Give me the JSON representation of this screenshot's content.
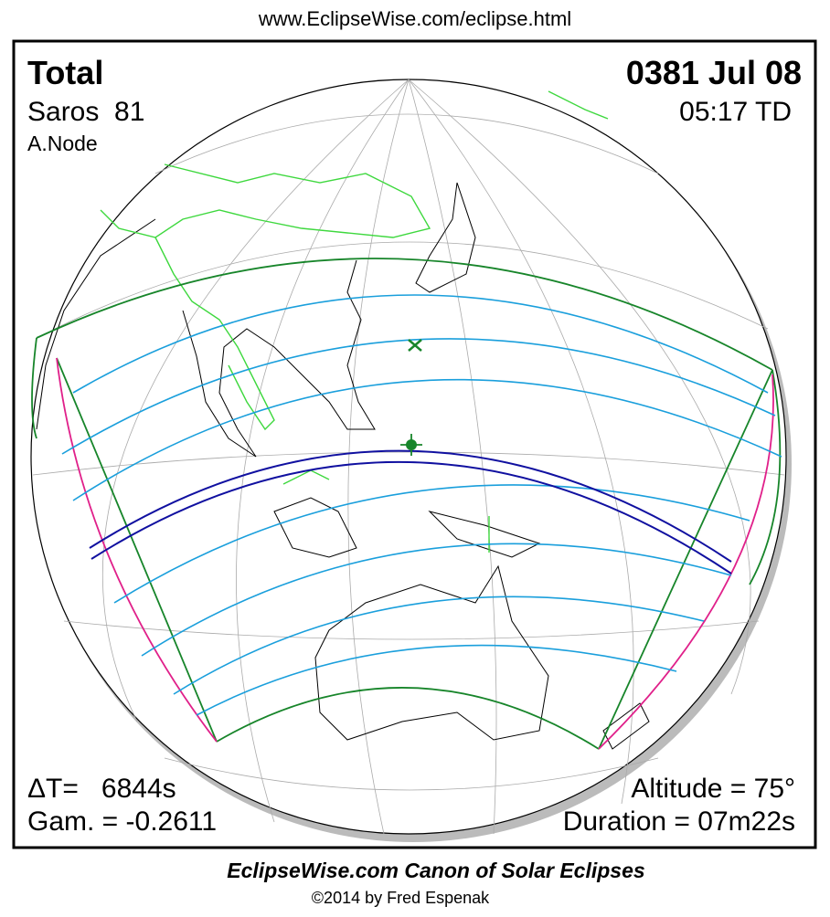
{
  "header": {
    "url": "www.EclipseWise.com/eclipse.html"
  },
  "panel": {
    "eclipse_type": "Total",
    "date": "0381 Jul 08",
    "saros": "Saros  81",
    "time": "05:17 TD",
    "node": "A.Node",
    "delta_t": "ΔT=   6844s",
    "gamma": "Gam. = -0.2611",
    "altitude": "Altitude = 75°",
    "duration": "Duration = 07m22s"
  },
  "footer": {
    "title": "EclipseWise.com Canon of Solar Eclipses",
    "copyright": "©2014 by Fred Espenak"
  }
}
